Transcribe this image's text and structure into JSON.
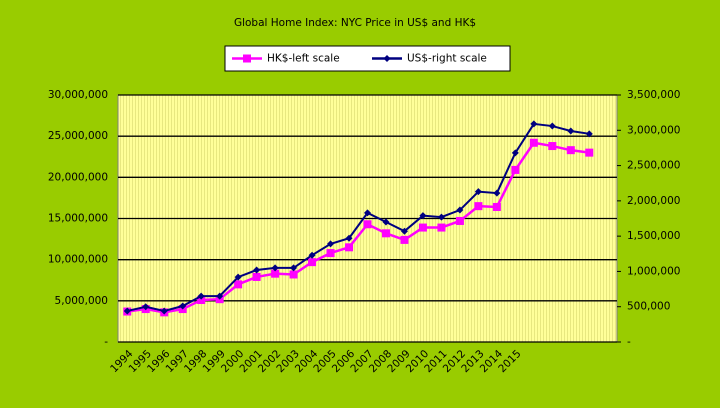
{
  "chart_data": {
    "type": "line",
    "title": "Global Home Index: NYC Price in US$ and HK$",
    "legend": "top",
    "categories": [
      "1994",
      "1995",
      "1996",
      "1997",
      "1998",
      "1999",
      "2000",
      "2001",
      "2002",
      "2003",
      "2004",
      "2005",
      "2006",
      "2007",
      "2008",
      "2009",
      "2010",
      "2011",
      "2012",
      "2013",
      "2014",
      "2015",
      null,
      null,
      null,
      null,
      null
    ],
    "series": [
      {
        "name": "HK$-left scale",
        "color": "#ff00ff",
        "axis": "y",
        "values": [
          3700000,
          4000000,
          3600000,
          4000000,
          5100000,
          5200000,
          7000000,
          7900000,
          8300000,
          8200000,
          9700000,
          10800000,
          11500000,
          14300000,
          13200000,
          12400000,
          13900000,
          13900000,
          14700000,
          16500000,
          16400000,
          20900000,
          24200000,
          23800000,
          23300000,
          23000000,
          null
        ]
      },
      {
        "name": "US$-right scale",
        "color": "#000080",
        "axis": "y2",
        "values": [
          440000,
          500000,
          440000,
          510000,
          650000,
          650000,
          920000,
          1020000,
          1050000,
          1050000,
          1230000,
          1390000,
          1470000,
          1830000,
          1700000,
          1570000,
          1790000,
          1770000,
          1870000,
          2130000,
          2110000,
          2680000,
          3090000,
          3060000,
          2990000,
          2950000,
          null
        ]
      }
    ],
    "ylim": [
      0,
      30000000
    ],
    "yticks": [
      {
        "value": 0,
        "label": "-"
      },
      {
        "value": 5000000,
        "label": "5,000,000"
      },
      {
        "value": 10000000,
        "label": "10,000,000"
      },
      {
        "value": 15000000,
        "label": "15,000,000"
      },
      {
        "value": 20000000,
        "label": "20,000,000"
      },
      {
        "value": 25000000,
        "label": "25,000,000"
      },
      {
        "value": 30000000,
        "label": "30,000,000"
      }
    ],
    "y2lim": [
      0,
      3500000
    ],
    "y2ticks": [
      {
        "value": 0,
        "label": "-"
      },
      {
        "value": 500000,
        "label": "500,000"
      },
      {
        "value": 1000000,
        "label": "1,000,000"
      },
      {
        "value": 1500000,
        "label": "1,500,000"
      },
      {
        "value": 2000000,
        "label": "2,000,000"
      },
      {
        "value": 2500000,
        "label": "2,500,000"
      },
      {
        "value": 3000000,
        "label": "3,000,000"
      },
      {
        "value": 3500000,
        "label": "3,500,000"
      }
    ],
    "grid": true
  }
}
